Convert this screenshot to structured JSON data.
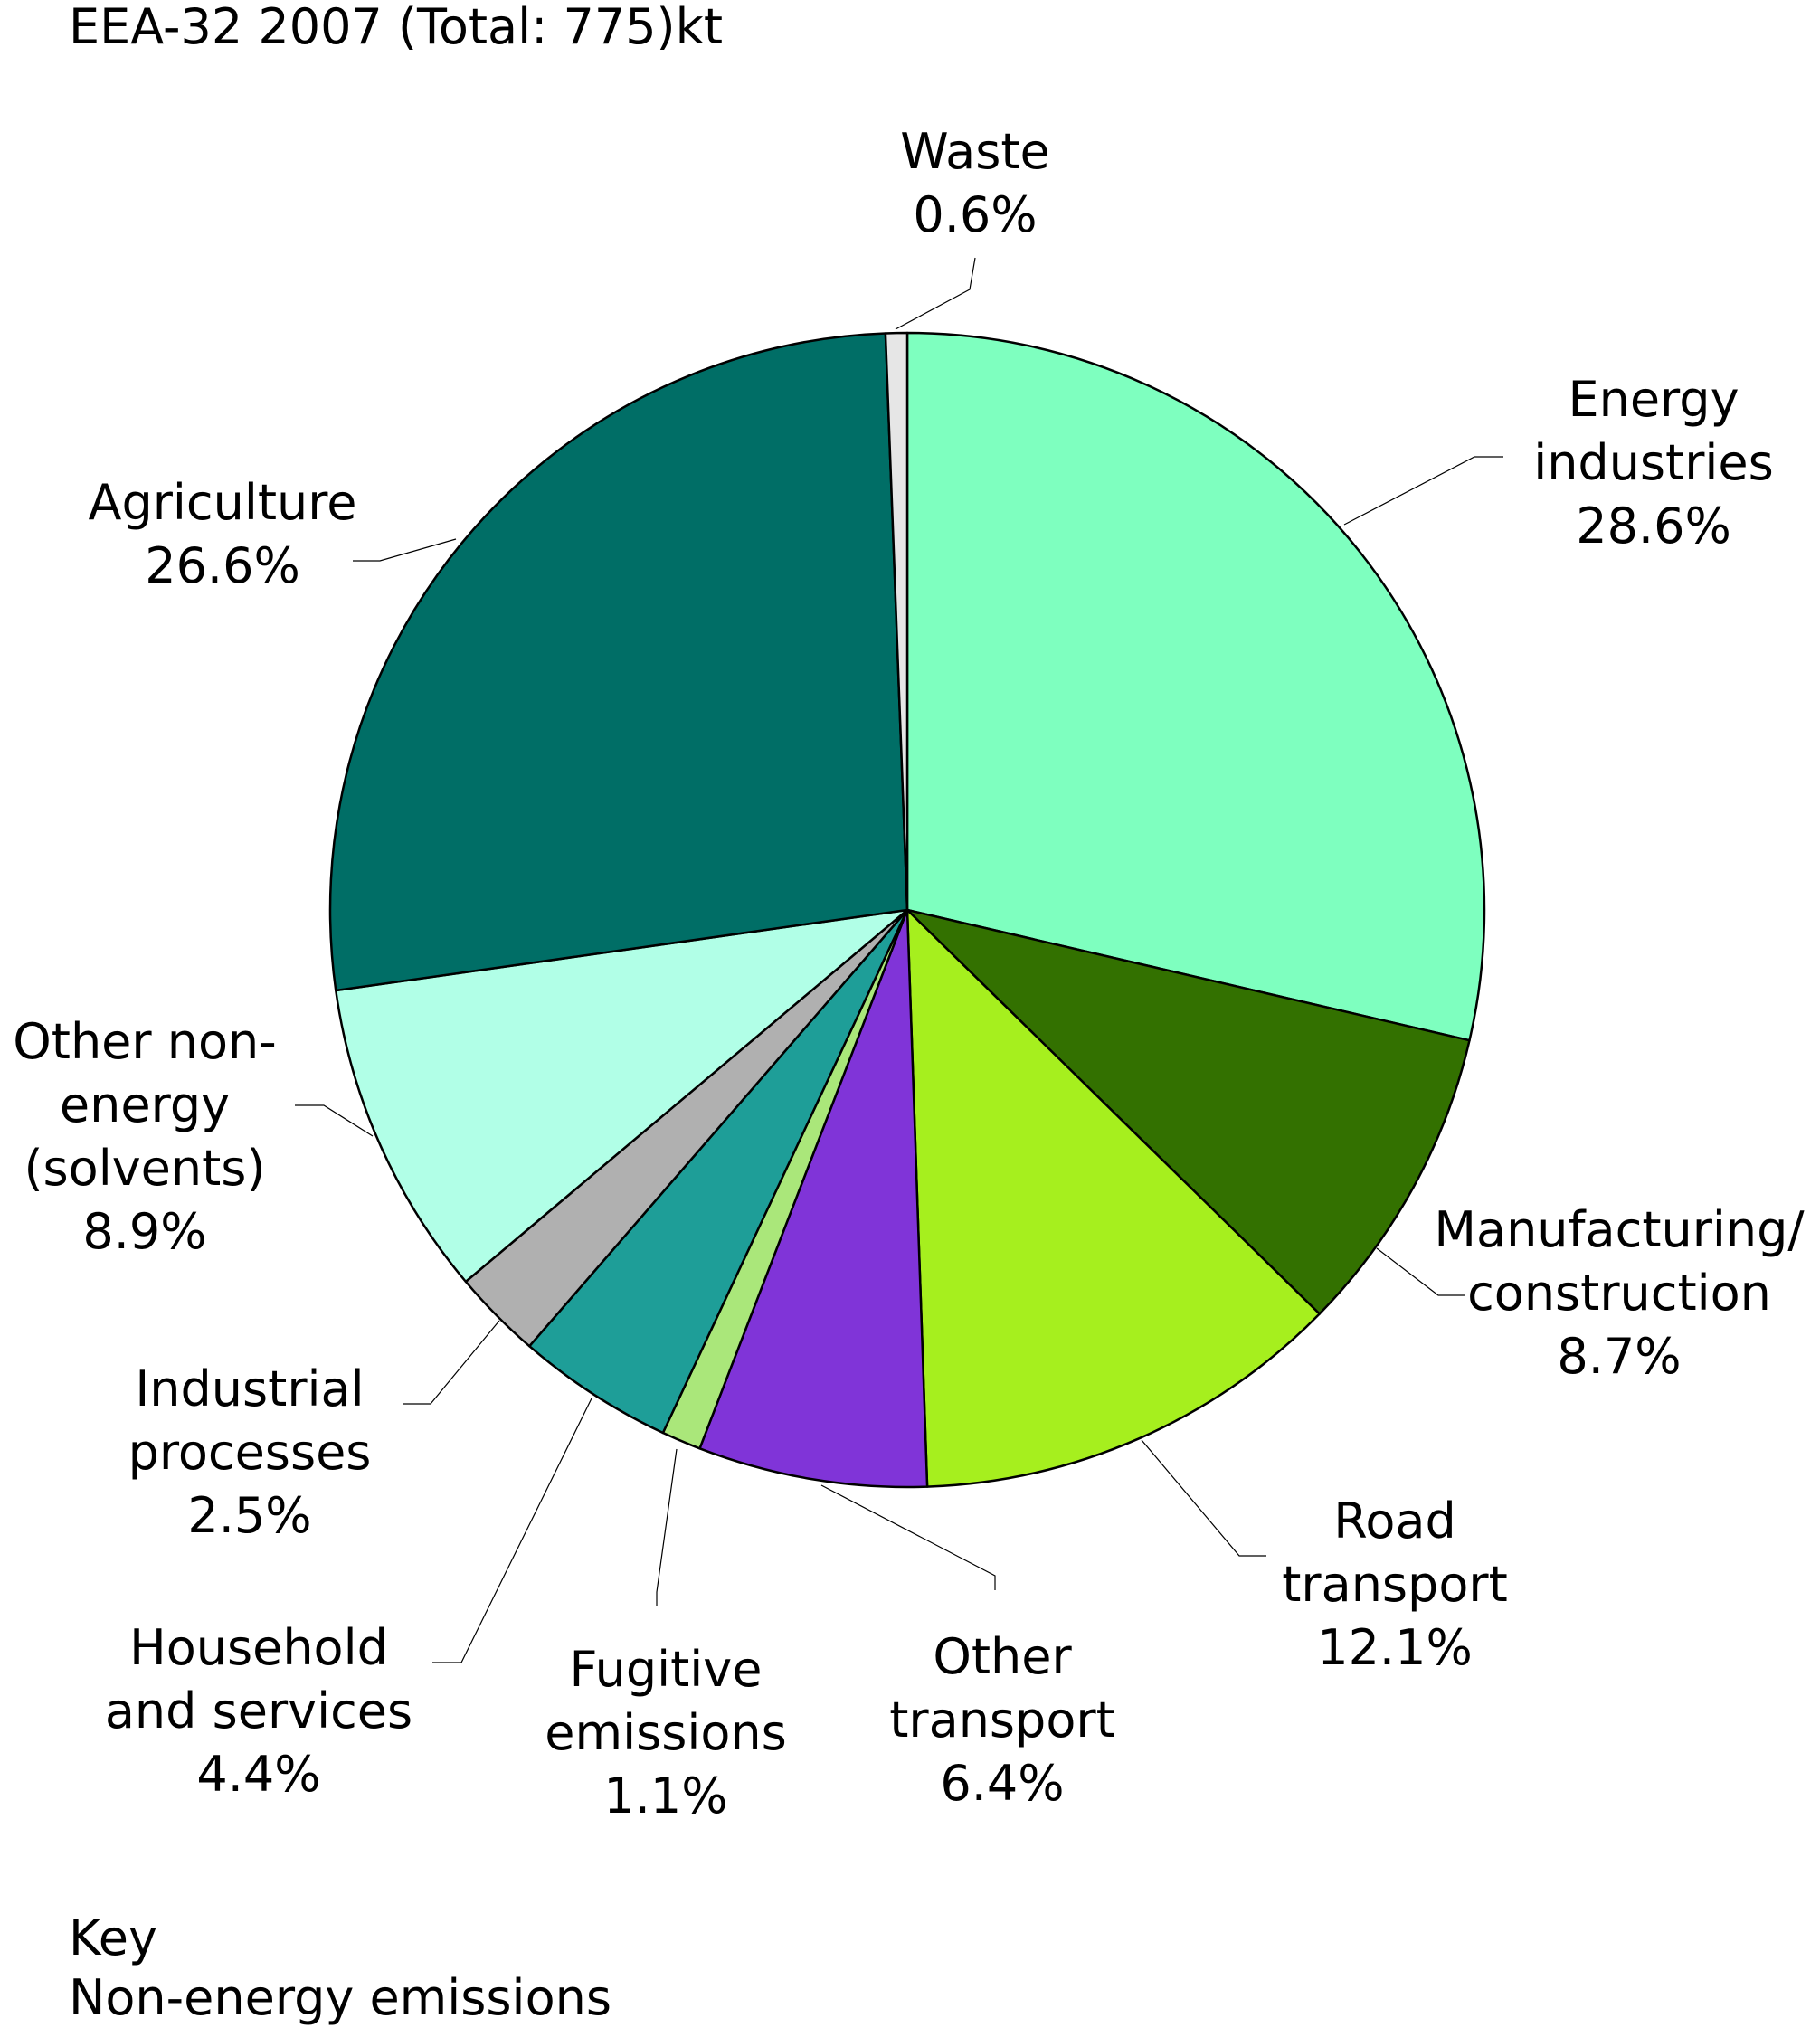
{
  "title": "EEA-32 2007 (Total: 775)kt",
  "footer": {
    "line1": "Key",
    "line2": "Non-energy emissions"
  },
  "chart_data": {
    "type": "pie",
    "title": "EEA-32 2007 (Total: 775)kt",
    "unit": "%",
    "slices": [
      {
        "label": "Energy industries",
        "label_lines": [
          "Energy",
          "industries"
        ],
        "value": 28.6,
        "value_text": "28.6%",
        "color": "#7effbf"
      },
      {
        "label": "Manufacturing/ construction",
        "label_lines": [
          "Manufacturing/",
          "construction"
        ],
        "value": 8.7,
        "value_text": "8.7%",
        "color": "#337100"
      },
      {
        "label": "Road transport",
        "label_lines": [
          "Road",
          "transport"
        ],
        "value": 12.1,
        "value_text": "12.1%",
        "color": "#a6ef1e"
      },
      {
        "label": "Other transport",
        "label_lines": [
          "Other",
          "transport"
        ],
        "value": 6.4,
        "value_text": "6.4%",
        "color": "#8034d8"
      },
      {
        "label": "Fugitive emissions",
        "label_lines": [
          "Fugitive",
          "emissions"
        ],
        "value": 1.1,
        "value_text": "1.1%",
        "color": "#aae77a"
      },
      {
        "label": "Household and services",
        "label_lines": [
          "Household",
          "and services"
        ],
        "value": 4.4,
        "value_text": "4.4%",
        "color": "#1e9e98"
      },
      {
        "label": "Industrial processes",
        "label_lines": [
          "Industrial",
          "processes"
        ],
        "value": 2.5,
        "value_text": "2.5%",
        "color": "#b0b0b0"
      },
      {
        "label": "Other non-energy (solvents)",
        "label_lines": [
          "Other non-",
          "energy",
          "(solvents)"
        ],
        "value": 8.9,
        "value_text": "8.9%",
        "color": "#b1ffe7"
      },
      {
        "label": "Agriculture",
        "label_lines": [
          "Agriculture"
        ],
        "value": 26.6,
        "value_text": "26.6%",
        "color": "#006e66"
      },
      {
        "label": "Waste",
        "label_lines": [
          "Waste"
        ],
        "value": 0.6,
        "value_text": "0.6%",
        "color": "#e6e6e6"
      }
    ]
  }
}
